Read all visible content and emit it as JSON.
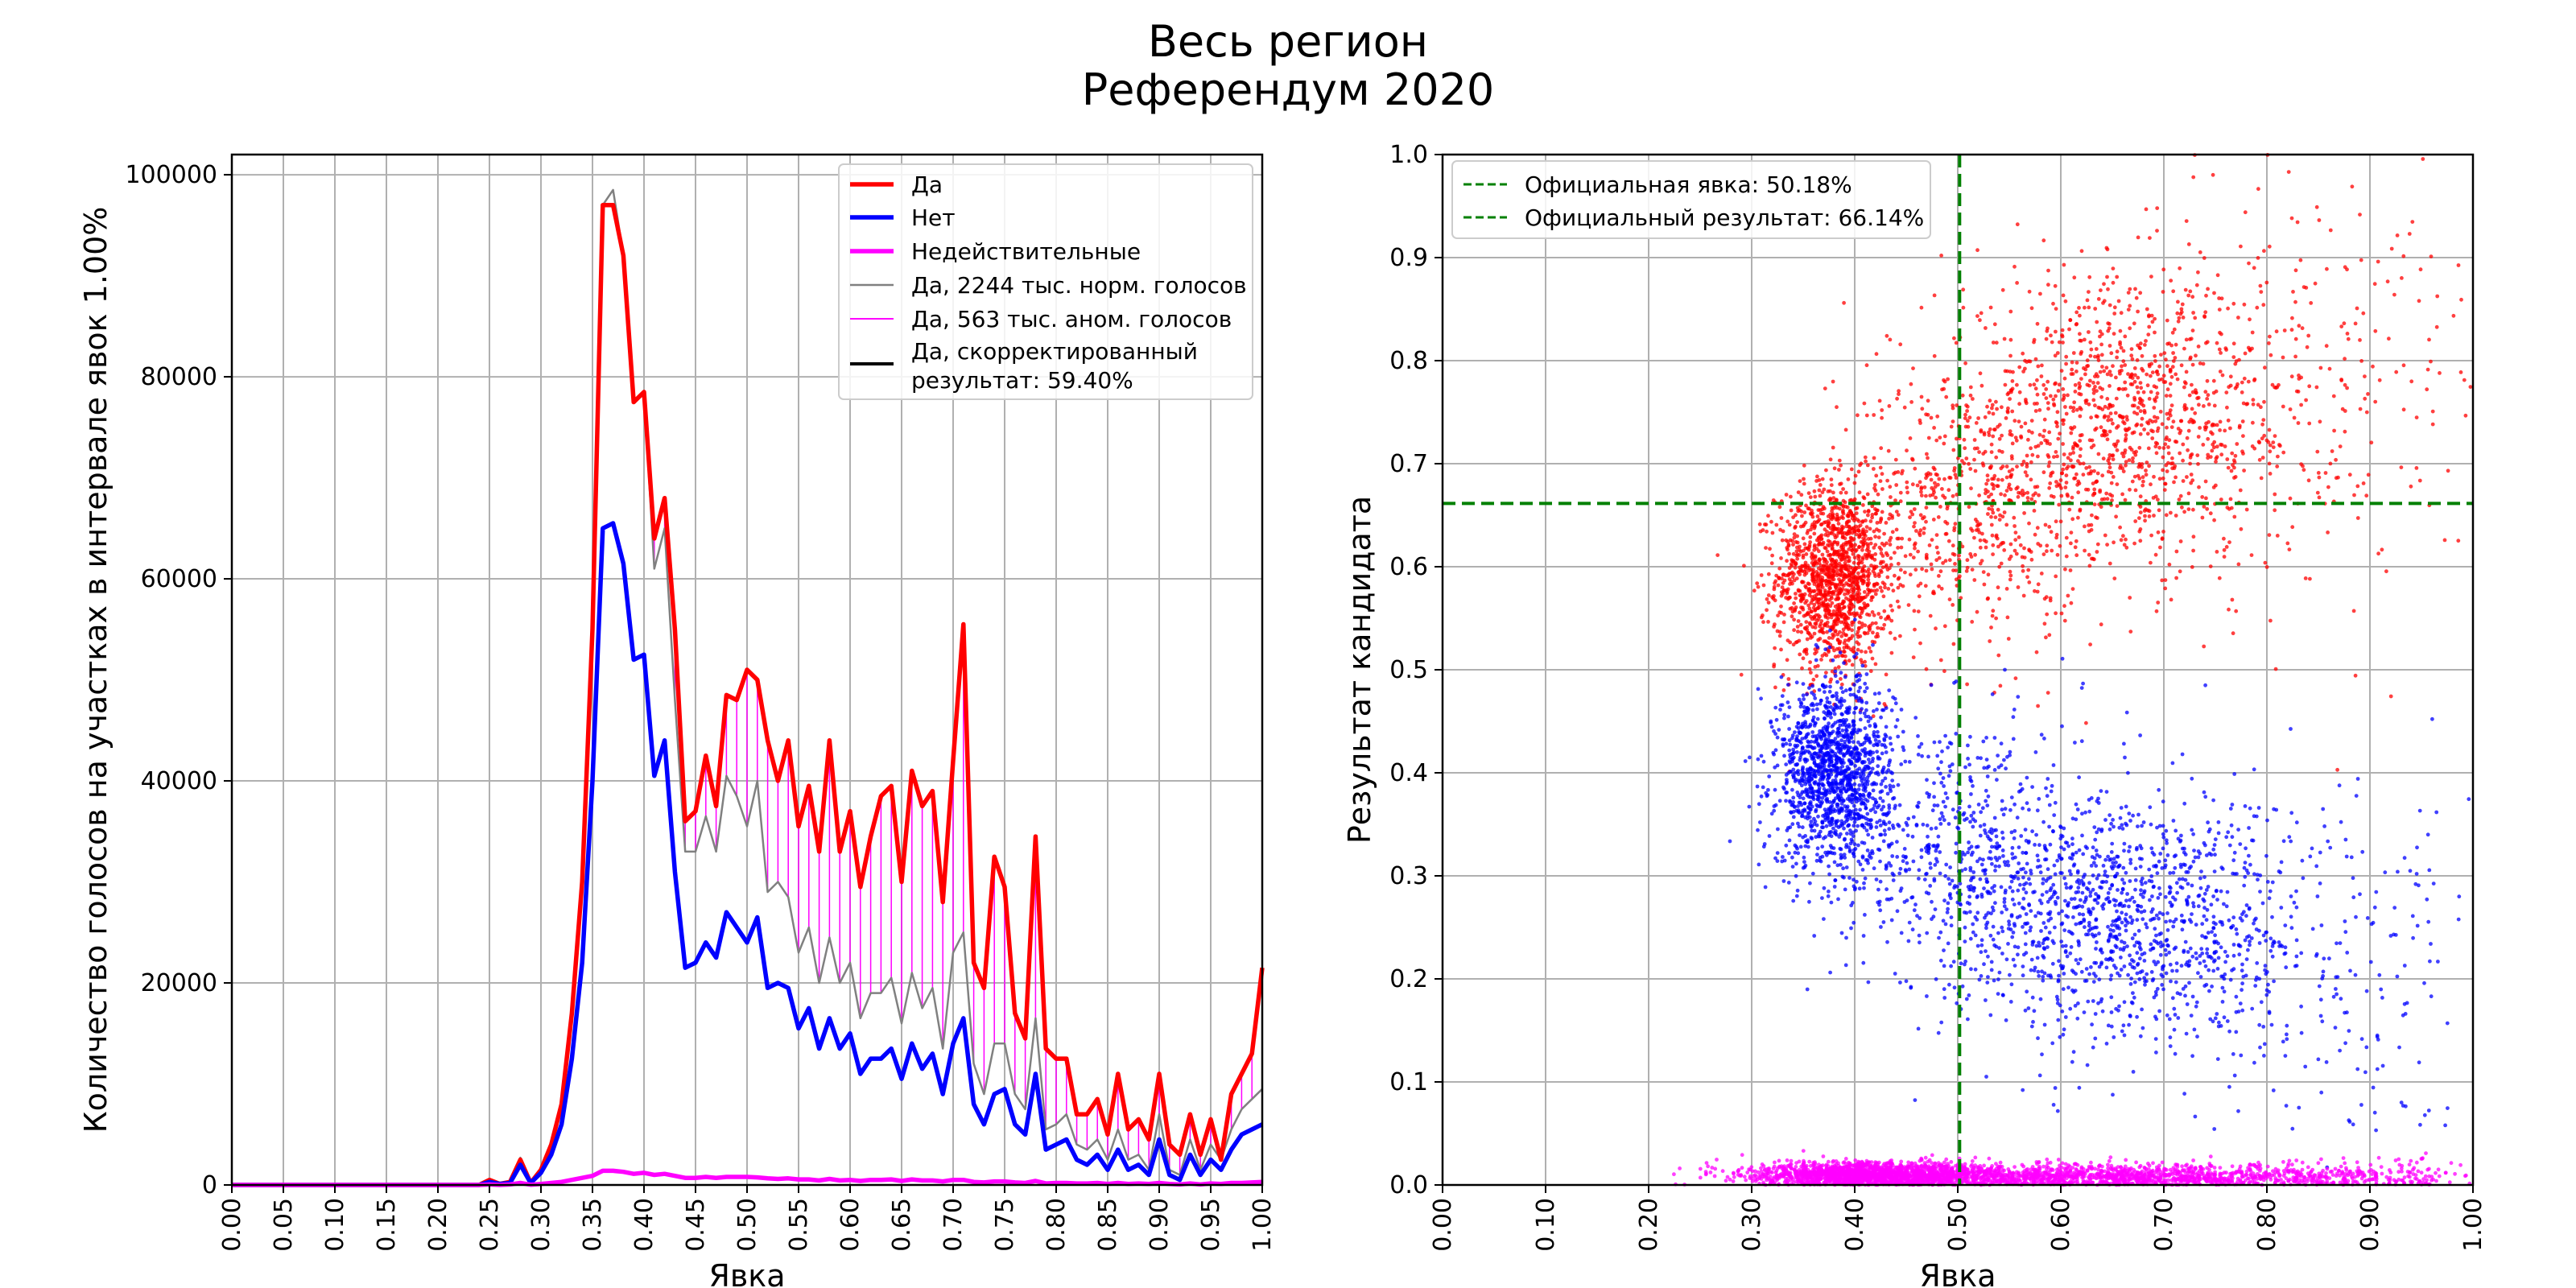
{
  "suptitle": [
    "Весь регион",
    "Референдум 2020"
  ],
  "colors": {
    "yes": "#ff0000",
    "no": "#0000ff",
    "invalid": "#ff00ff",
    "normal": "#808080",
    "anomalous": "#ff00ff",
    "corrected": "#000000",
    "official": "#008000",
    "grid": "#b0b0b0"
  },
  "chart_data": [
    {
      "type": "line",
      "title": "",
      "xlabel": "Явка",
      "ylabel": "Количество голосов на участках в интервале явок 1.00%",
      "xlim": [
        0,
        1
      ],
      "ylim": [
        0,
        102000
      ],
      "xticks": [
        "0.00",
        "0.05",
        "0.10",
        "0.15",
        "0.20",
        "0.25",
        "0.30",
        "0.35",
        "0.40",
        "0.45",
        "0.50",
        "0.55",
        "0.60",
        "0.65",
        "0.70",
        "0.75",
        "0.80",
        "0.85",
        "0.90",
        "0.95",
        "1.00"
      ],
      "yticks": [
        "0",
        "20000",
        "40000",
        "60000",
        "80000",
        "100000"
      ],
      "grid": true,
      "legend_position": "top-right",
      "legend": [
        "Да",
        "Нет",
        "Недействительные",
        "Да, 2244 тыс. норм. голосов",
        "Да, 563 тыс. аном. голосов",
        "Да, скорректированный результат: 59.40%"
      ],
      "x": [
        0.0,
        0.01,
        0.02,
        0.03,
        0.04,
        0.05,
        0.06,
        0.07,
        0.08,
        0.09,
        0.1,
        0.11,
        0.12,
        0.13,
        0.14,
        0.15,
        0.16,
        0.17,
        0.18,
        0.19,
        0.2,
        0.21,
        0.22,
        0.23,
        0.24,
        0.25,
        0.26,
        0.27,
        0.28,
        0.29,
        0.3,
        0.31,
        0.32,
        0.33,
        0.34,
        0.35,
        0.36,
        0.37,
        0.38,
        0.39,
        0.4,
        0.41,
        0.42,
        0.43,
        0.44,
        0.45,
        0.46,
        0.47,
        0.48,
        0.49,
        0.5,
        0.51,
        0.52,
        0.53,
        0.54,
        0.55,
        0.56,
        0.57,
        0.58,
        0.59,
        0.6,
        0.61,
        0.62,
        0.63,
        0.64,
        0.65,
        0.66,
        0.67,
        0.68,
        0.69,
        0.7,
        0.71,
        0.72,
        0.73,
        0.74,
        0.75,
        0.76,
        0.77,
        0.78,
        0.79,
        0.8,
        0.81,
        0.82,
        0.83,
        0.84,
        0.85,
        0.86,
        0.87,
        0.88,
        0.89,
        0.9,
        0.91,
        0.92,
        0.93,
        0.94,
        0.95,
        0.96,
        0.97,
        0.98,
        0.99,
        1.0
      ],
      "series": [
        {
          "name": "Да",
          "values": [
            0,
            0,
            0,
            0,
            0,
            0,
            0,
            0,
            0,
            0,
            0,
            0,
            0,
            0,
            0,
            0,
            0,
            0,
            0,
            0,
            0,
            0,
            0,
            0,
            0,
            500,
            100,
            300,
            2500,
            200,
            1500,
            4000,
            8000,
            17000,
            30000,
            55000,
            97000,
            97000,
            92000,
            77500,
            78500,
            64000,
            68000,
            55000,
            36000,
            37000,
            42500,
            37500,
            48500,
            48000,
            51000,
            50000,
            44000,
            40000,
            44000,
            35500,
            39500,
            33000,
            44000,
            33000,
            37000,
            29500,
            34500,
            38500,
            39500,
            30000,
            41000,
            37500,
            39000,
            28000,
            42000,
            55500,
            22000,
            19500,
            32500,
            29500,
            17000,
            14500,
            34500,
            13500,
            12500,
            12500,
            7000,
            7000,
            8500,
            5000,
            11000,
            5500,
            6500,
            4500,
            11000,
            4000,
            3000,
            7000,
            3000,
            6500,
            2500,
            9000,
            11000,
            13000,
            21500
          ]
        },
        {
          "name": "Нет",
          "values": [
            0,
            0,
            0,
            0,
            0,
            0,
            0,
            0,
            0,
            0,
            0,
            0,
            0,
            0,
            0,
            0,
            0,
            0,
            0,
            0,
            0,
            0,
            0,
            0,
            0,
            300,
            100,
            200,
            2000,
            200,
            1200,
            3000,
            6000,
            12500,
            22000,
            40000,
            65000,
            65500,
            61500,
            52000,
            52500,
            40500,
            44000,
            31000,
            21500,
            22000,
            24000,
            22500,
            27000,
            25500,
            24000,
            26500,
            19500,
            20000,
            19500,
            15500,
            17500,
            13500,
            16500,
            13500,
            15000,
            11000,
            12500,
            12500,
            13500,
            10500,
            14000,
            11500,
            13000,
            9000,
            14000,
            16500,
            8000,
            6000,
            9000,
            9500,
            6000,
            5000,
            11000,
            3500,
            4000,
            4500,
            2500,
            2000,
            3000,
            1500,
            3500,
            1500,
            2000,
            1000,
            4500,
            1000,
            500,
            3000,
            1000,
            2500,
            1500,
            3500,
            5000,
            5500,
            6000
          ]
        },
        {
          "name": "Недействительные",
          "values": [
            0,
            0,
            0,
            0,
            0,
            0,
            0,
            0,
            0,
            0,
            0,
            0,
            0,
            0,
            0,
            0,
            0,
            0,
            0,
            0,
            0,
            0,
            0,
            0,
            0,
            50,
            0,
            50,
            200,
            20,
            100,
            200,
            300,
            500,
            700,
            900,
            1400,
            1400,
            1300,
            1100,
            1200,
            1000,
            1100,
            900,
            700,
            700,
            800,
            700,
            800,
            800,
            800,
            750,
            650,
            600,
            650,
            550,
            550,
            450,
            600,
            450,
            500,
            400,
            500,
            500,
            550,
            400,
            550,
            450,
            450,
            350,
            500,
            500,
            300,
            250,
            350,
            350,
            250,
            200,
            400,
            150,
            200,
            200,
            150,
            150,
            200,
            100,
            200,
            100,
            150,
            100,
            200,
            100,
            50,
            150,
            50,
            150,
            100,
            200,
            200,
            250,
            300
          ]
        },
        {
          "name": "Да, 2244 тыс. норм. голосов",
          "values": [
            0,
            0,
            0,
            0,
            0,
            0,
            0,
            0,
            0,
            0,
            0,
            0,
            0,
            0,
            0,
            0,
            0,
            0,
            0,
            0,
            0,
            0,
            0,
            0,
            0,
            500,
            100,
            300,
            2700,
            200,
            1500,
            4000,
            8000,
            17000,
            30000,
            55000,
            97000,
            98500,
            92000,
            77500,
            78500,
            61000,
            65000,
            48000,
            33000,
            33000,
            36500,
            33000,
            40500,
            38500,
            35500,
            40000,
            29000,
            30000,
            28500,
            23000,
            25500,
            20000,
            24500,
            20000,
            22000,
            16500,
            19000,
            19000,
            20500,
            16000,
            21000,
            17500,
            19500,
            13500,
            23000,
            25000,
            12000,
            9000,
            14000,
            14000,
            9000,
            7500,
            16500,
            5500,
            6000,
            7000,
            4000,
            3500,
            4500,
            2500,
            5500,
            2500,
            3000,
            1500,
            7000,
            1500,
            1000,
            4500,
            1500,
            4000,
            2500,
            5500,
            7500,
            8500,
            9500
          ]
        },
        {
          "name": "Да, 563 тыс. аном. голосов",
          "values": [
            0,
            0,
            0,
            0,
            0,
            0,
            0,
            0,
            0,
            0,
            0,
            0,
            0,
            0,
            0,
            0,
            0,
            0,
            0,
            0,
            0,
            0,
            0,
            0,
            0,
            0,
            0,
            0,
            0,
            0,
            0,
            0,
            0,
            0,
            0,
            0,
            0,
            0,
            0,
            0,
            0,
            3000,
            3000,
            7000,
            3000,
            4000,
            6000,
            4500,
            8000,
            9500,
            15500,
            10000,
            15000,
            10000,
            15500,
            12500,
            14000,
            13000,
            19500,
            13000,
            15000,
            13000,
            15500,
            19500,
            19000,
            14000,
            20000,
            20000,
            19500,
            14500,
            19000,
            30500,
            10000,
            10500,
            18500,
            15500,
            8000,
            7000,
            18000,
            8000,
            6500,
            5500,
            3000,
            3500,
            4000,
            2500,
            5500,
            3000,
            3500,
            3000,
            4000,
            2500,
            2000,
            2500,
            1500,
            2500,
            0,
            3500,
            3500,
            4500,
            12000
          ]
        }
      ]
    },
    {
      "type": "scatter",
      "title": "",
      "xlabel": "Явка",
      "ylabel": "Результат кандидата",
      "xlim": [
        0,
        1
      ],
      "ylim": [
        0,
        1
      ],
      "xticks": [
        "0.00",
        "0.10",
        "0.20",
        "0.30",
        "0.40",
        "0.50",
        "0.60",
        "0.70",
        "0.80",
        "0.90",
        "1.00"
      ],
      "yticks": [
        "0.0",
        "0.1",
        "0.2",
        "0.3",
        "0.4",
        "0.5",
        "0.6",
        "0.7",
        "0.8",
        "0.9",
        "1.0"
      ],
      "grid": true,
      "legend_position": "top-left",
      "legend": [
        "Официальная явка: 50.18%",
        "Официальный результат: 66.14%"
      ],
      "official_turnout": 0.5018,
      "official_result": 0.6614,
      "series": [
        {
          "name": "Да",
          "clusters": [
            {
              "cx": 0.38,
              "cy": 0.59,
              "sx": 0.028,
              "sy": 0.045,
              "count": 1400
            },
            {
              "cx": 0.5,
              "cy": 0.65,
              "sx": 0.06,
              "sy": 0.07,
              "count": 500
            },
            {
              "cx": 0.66,
              "cy": 0.74,
              "sx": 0.09,
              "sy": 0.07,
              "count": 1200
            },
            {
              "cx": 0.85,
              "cy": 0.78,
              "sx": 0.09,
              "sy": 0.11,
              "count": 200
            }
          ]
        },
        {
          "name": "Нет",
          "clusters": [
            {
              "cx": 0.38,
              "cy": 0.4,
              "sx": 0.028,
              "sy": 0.045,
              "count": 1400
            },
            {
              "cx": 0.5,
              "cy": 0.33,
              "sx": 0.06,
              "sy": 0.07,
              "count": 500
            },
            {
              "cx": 0.66,
              "cy": 0.26,
              "sx": 0.09,
              "sy": 0.06,
              "count": 1200
            },
            {
              "cx": 0.85,
              "cy": 0.2,
              "sx": 0.09,
              "sy": 0.09,
              "count": 200
            }
          ]
        },
        {
          "name": "Недействительные",
          "clusters": [
            {
              "cx": 0.42,
              "cy": 0.01,
              "sx": 0.06,
              "sy": 0.006,
              "count": 1800
            },
            {
              "cx": 0.65,
              "cy": 0.008,
              "sx": 0.12,
              "sy": 0.006,
              "count": 1400
            },
            {
              "cx": 0.9,
              "cy": 0.008,
              "sx": 0.06,
              "sy": 0.008,
              "count": 200
            }
          ]
        }
      ]
    }
  ]
}
